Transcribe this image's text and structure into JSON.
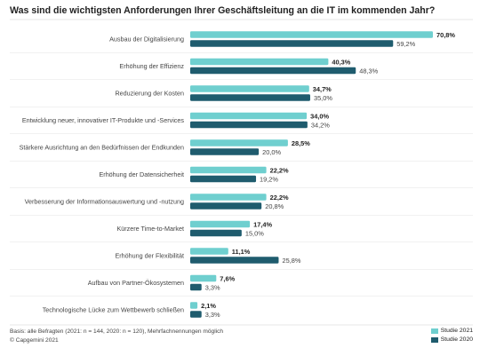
{
  "chart_data": {
    "type": "bar",
    "orientation": "horizontal",
    "title": "Was sind die wichtigsten Anforderungen Ihrer Geschäftsleitung an die IT im kommenden Jahr?",
    "categories": [
      "Ausbau der Digitalisierung",
      "Erhöhung der Effizienz",
      "Reduzierung der Kosten",
      "Entwicklung neuer, innovativer IT-Produkte und -Services",
      "Stärkere Ausrichtung an den Bedürfnissen der Endkunden",
      "Erhöhung der Datensicherheit",
      "Verbesserung der Informationsauswertung und -nutzung",
      "Kürzere Time-to-Market",
      "Erhöhung der Flexibilität",
      "Aufbau von Partner-Ökosystemen",
      "Technologische Lücke zum Wettbewerb schließen"
    ],
    "series": [
      {
        "name": "Studie 2021",
        "color": "#6fcfcf",
        "values": [
          70.8,
          40.3,
          34.7,
          34.0,
          28.5,
          22.2,
          22.2,
          17.4,
          11.1,
          7.6,
          2.1
        ],
        "labels": [
          "70,8%",
          "40,3%",
          "34,7%",
          "34,0%",
          "28,5%",
          "22,2%",
          "22,2%",
          "17,4%",
          "11,1%",
          "7,6%",
          "2,1%"
        ]
      },
      {
        "name": "Studie 2020",
        "color": "#1f5c6e",
        "values": [
          59.2,
          48.3,
          35.0,
          34.2,
          20.0,
          19.2,
          20.8,
          15.0,
          25.8,
          3.3,
          3.3
        ],
        "labels": [
          "59,2%",
          "48,3%",
          "35,0%",
          "34,2%",
          "20,0%",
          "19,2%",
          "20,8%",
          "15,0%",
          "25,8%",
          "3,3%",
          "3,3%"
        ]
      }
    ],
    "xlim": [
      0,
      70.8
    ],
    "grid": false,
    "legend": "bottom-right"
  },
  "footer": {
    "basis": "Basis: alle Befragten (2021: n = 144, 2020: n = 120), Mehrfachnennungen möglich",
    "copyright": "© Capgemini 2021"
  }
}
